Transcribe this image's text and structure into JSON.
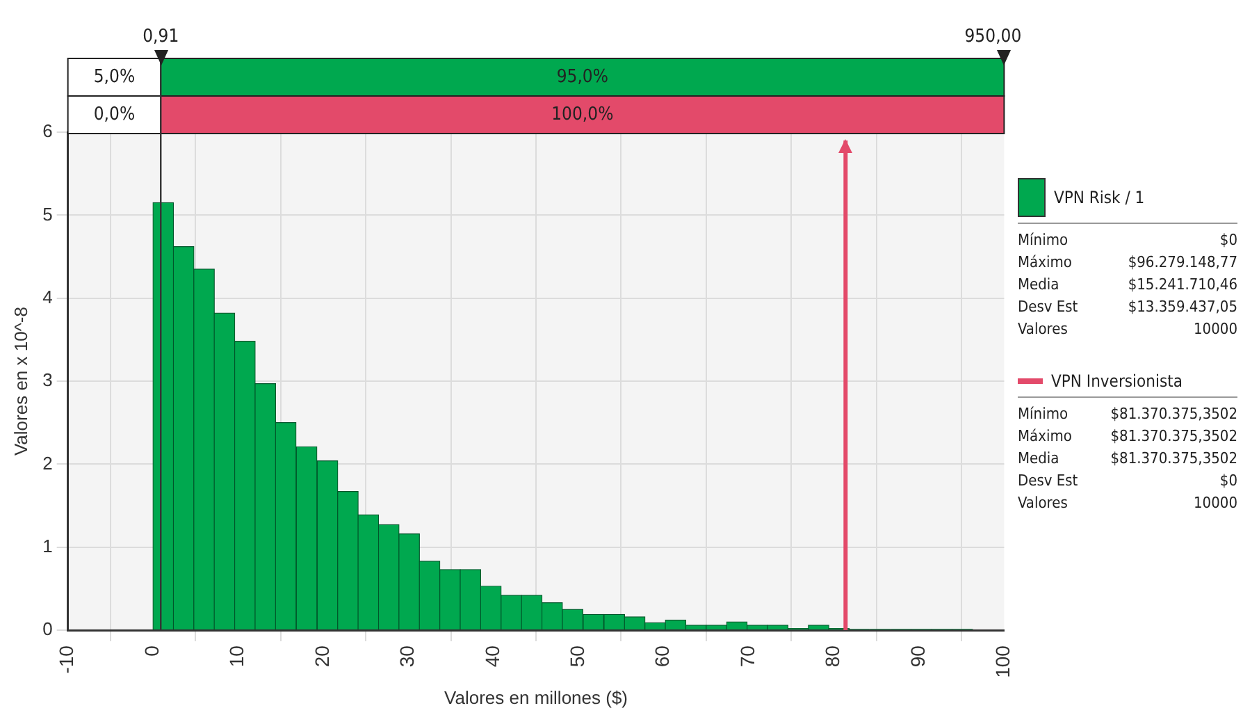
{
  "chart_data": {
    "type": "histogram",
    "xlabel": "Valores en millones ($)",
    "ylabel": "Valores en x 10^-8",
    "bins": [
      0,
      2.4,
      4.8,
      7.2,
      9.6,
      12.0,
      14.4,
      16.8,
      19.3,
      21.7,
      24.1,
      26.5,
      28.9,
      31.3,
      33.7,
      36.1,
      38.5,
      40.9,
      43.3,
      45.7,
      48.1,
      50.5,
      53.0,
      55.4,
      57.8,
      60.2,
      62.6,
      65.0,
      67.4,
      69.8,
      72.2,
      74.6,
      77.0,
      79.4,
      81.8,
      84.2,
      86.7,
      89.1,
      91.5,
      93.9,
      96.3
    ],
    "series": [
      {
        "name": "VPN Risk / 1",
        "color": "#00a84f",
        "values": [
          5.15,
          4.62,
          4.35,
          3.82,
          3.48,
          2.97,
          2.5,
          2.21,
          2.04,
          1.67,
          1.39,
          1.27,
          1.16,
          0.83,
          0.73,
          0.73,
          0.53,
          0.42,
          0.42,
          0.33,
          0.25,
          0.19,
          0.19,
          0.16,
          0.09,
          0.12,
          0.06,
          0.06,
          0.1,
          0.06,
          0.06,
          0.02,
          0.06,
          0.02,
          0.01,
          0.01,
          0.01,
          0.01,
          0.01,
          0.01
        ]
      },
      {
        "name": "VPN Inversionista",
        "type": "line",
        "color": "#e34a6a",
        "x": [
          81.37,
          81.37
        ],
        "values": [
          0,
          5.9
        ]
      }
    ],
    "xlim": [
      -10,
      100
    ],
    "xticks": [
      -10,
      0,
      10,
      20,
      30,
      40,
      50,
      60,
      70,
      80,
      90,
      100
    ],
    "ylim": [
      0,
      6
    ],
    "yticks": [
      0,
      1,
      2,
      3,
      4,
      5,
      6
    ],
    "grid": true,
    "legend": "right",
    "ref_lines": [
      {
        "axis": "x",
        "value": 0.91,
        "label": "0,91",
        "color": "#333333"
      }
    ],
    "annotations": [
      "5,0%",
      "95,0%",
      "0,0%",
      "100,0%",
      "950,00",
      "Mínimo\t$0",
      "Máximo\t$96.279.148,77",
      "Media\t$15.241.710,46",
      "Desv Est\t$13.359.437,05",
      "Valores\t10000",
      "Mínimo\t$81.370.375,3502",
      "Máximo\t$81.370.375,3502",
      "Media\t$81.370.375,3502",
      "Desv Est\t$0",
      "Valores\t10000"
    ]
  }
}
